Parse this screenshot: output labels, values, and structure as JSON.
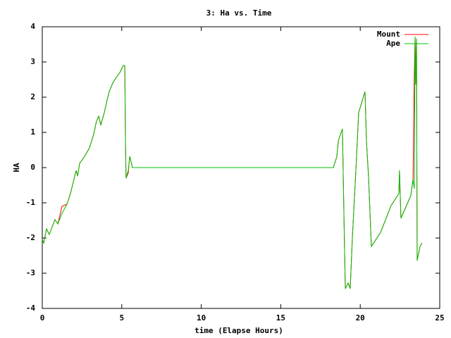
{
  "chart_data": {
    "type": "line",
    "title": "3: Ha vs. Time",
    "x_label": "time (Elapse Hours)",
    "y_label": "HA",
    "x": [
      0,
      0.09,
      0.27,
      0.44,
      0.66,
      0.8,
      0.98,
      1.24,
      1.55,
      1.77,
      1.99,
      2.13,
      2.22,
      2.35,
      2.66,
      2.97,
      3.24,
      3.41,
      3.55,
      3.68,
      3.9,
      4.08,
      4.21,
      4.43,
      4.65,
      4.88,
      5.1,
      5.19,
      5.23,
      5.27,
      5.41,
      5.5,
      5.59,
      5.67,
      18.31,
      18.53,
      18.62,
      18.88,
      18.97,
      19.06,
      19.24,
      19.37,
      19.5,
      19.73,
      19.9,
      20.3,
      20.39,
      20.52,
      20.7,
      21.28,
      21.94,
      22.43,
      22.47,
      22.56,
      23.18,
      23.32,
      23.4,
      23.45,
      23.49,
      23.54,
      23.58,
      23.76,
      23.89
    ],
    "series": [
      {
        "name": "Mount",
        "color": "#ff0000",
        "values": [
          -2.04,
          -2.14,
          -1.74,
          -1.9,
          -1.64,
          -1.48,
          -1.6,
          -1.1,
          -1.04,
          -0.74,
          -0.34,
          -0.08,
          -0.24,
          0.12,
          0.32,
          0.56,
          0.96,
          1.32,
          1.46,
          1.22,
          1.56,
          1.92,
          2.16,
          2.4,
          2.56,
          2.7,
          2.9,
          2.9,
          0.76,
          -0.3,
          -0.15,
          0.32,
          0.16,
          0,
          0,
          0.32,
          0.76,
          1.1,
          -1.24,
          -3.44,
          -3.28,
          -3.44,
          -2.04,
          -0.04,
          1.56,
          2.16,
          0.76,
          -0.24,
          -2.24,
          -1.84,
          -1.08,
          -0.74,
          -0.08,
          -1.44,
          -0.8,
          -0.34,
          2.6,
          3.72,
          2.36,
          3.66,
          -2.64,
          -2.24,
          -2.14
        ]
      },
      {
        "name": "Ape",
        "color": "#00c000",
        "values": [
          -2.04,
          -2.14,
          -1.74,
          -1.9,
          -1.64,
          -1.48,
          -1.6,
          -1.3,
          -1.04,
          -0.74,
          -0.34,
          -0.08,
          -0.24,
          0.12,
          0.32,
          0.56,
          0.96,
          1.32,
          1.46,
          1.2,
          1.56,
          1.92,
          2.16,
          2.4,
          2.56,
          2.7,
          2.9,
          2.9,
          0.76,
          -0.3,
          -0.08,
          0.32,
          0.16,
          0,
          0,
          0.32,
          0.76,
          1.1,
          -1.24,
          -3.44,
          -3.28,
          -3.44,
          -2.04,
          -0.04,
          1.56,
          2.16,
          0.76,
          -0.24,
          -2.24,
          -1.84,
          -1.08,
          -0.74,
          -0.08,
          -1.44,
          -0.8,
          -0.34,
          -0.6,
          3.72,
          2.36,
          3.66,
          -2.64,
          -2.24,
          -2.14
        ]
      }
    ],
    "xlim": [
      0,
      25
    ],
    "xticks": [
      0,
      5,
      10,
      15,
      20,
      25
    ],
    "ylim": [
      -4,
      4
    ],
    "yticks": [
      -4,
      -3,
      -2,
      -1,
      0,
      1,
      2,
      3,
      4
    ],
    "legend": "upper right"
  }
}
